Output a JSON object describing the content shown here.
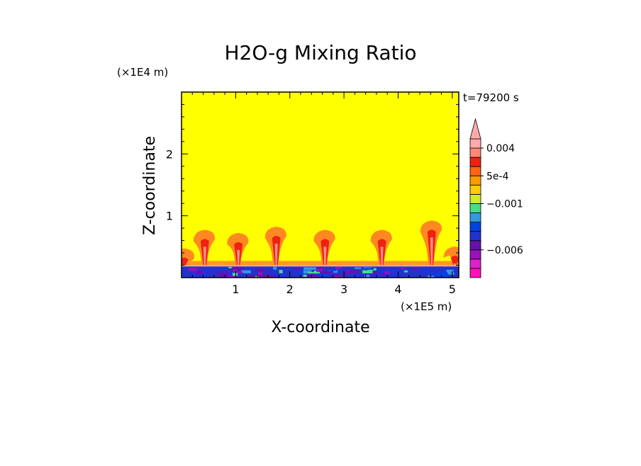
{
  "chart_data": {
    "type": "heatmap",
    "title": "H2O-g Mixing Ratio",
    "xlabel": "X-coordinate",
    "ylabel": "Z-coordinate",
    "x_multiplier": "(×1E5 m)",
    "y_multiplier": "(×1E4 m)",
    "time_label": "t=79200 s",
    "xlim": [
      0,
      5.12
    ],
    "ylim": [
      0,
      3.0
    ],
    "x_ticks": [
      {
        "value": 1,
        "label": "1"
      },
      {
        "value": 2,
        "label": "2"
      },
      {
        "value": 3,
        "label": "3"
      },
      {
        "value": 4,
        "label": "4"
      },
      {
        "value": 5,
        "label": "5"
      }
    ],
    "y_ticks": [
      {
        "value": 1,
        "label": "1"
      },
      {
        "value": 2,
        "label": "2"
      }
    ],
    "colorbar": {
      "levels": [
        "#ff11bb",
        "#dd22cc",
        "#9911bb",
        "#6611aa",
        "#2233cc",
        "#0044dd",
        "#3399dd",
        "#44dd88",
        "#ccee22",
        "#ffcc00",
        "#ff9900",
        "#ff6611",
        "#ee2211",
        "#ff8877",
        "#ffaaaa"
      ],
      "labels": [
        {
          "value": 0.004,
          "label": "0.004"
        },
        {
          "value": 0.0005,
          "label": "5e-4"
        },
        {
          "value": -0.001,
          "label": "−0.001"
        },
        {
          "value": -0.006,
          "label": "−0.006"
        }
      ]
    },
    "field": {
      "background_color": "#ffff00",
      "plumes": [
        {
          "x": 0.05,
          "top": 0.45,
          "color": "#ff8822"
        },
        {
          "x": 0.43,
          "top": 0.75,
          "color": "#ff8822"
        },
        {
          "x": 1.05,
          "top": 0.7,
          "color": "#ff8822"
        },
        {
          "x": 1.75,
          "top": 0.8,
          "color": "#ff8822"
        },
        {
          "x": 2.65,
          "top": 0.75,
          "color": "#ff8822"
        },
        {
          "x": 3.7,
          "top": 0.75,
          "color": "#ff8822"
        },
        {
          "x": 4.62,
          "top": 0.9,
          "color": "#ff8822"
        },
        {
          "x": 5.05,
          "top": 0.48,
          "color": "#ff8822"
        }
      ],
      "surface_layer_top": 0.18
    }
  }
}
